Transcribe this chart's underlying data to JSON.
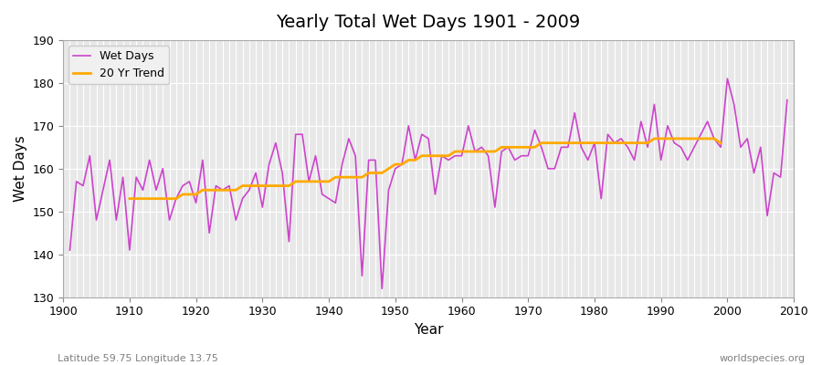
{
  "title": "Yearly Total Wet Days 1901 - 2009",
  "xlabel": "Year",
  "ylabel": "Wet Days",
  "footnote_left": "Latitude 59.75 Longitude 13.75",
  "footnote_right": "worldspecies.org",
  "ylim": [
    130,
    190
  ],
  "yticks": [
    130,
    140,
    150,
    160,
    170,
    180,
    190
  ],
  "line_color": "#cc44cc",
  "trend_color": "#ffaa00",
  "bg_color": "#e8e8e8",
  "years": [
    1901,
    1902,
    1903,
    1904,
    1905,
    1906,
    1907,
    1908,
    1909,
    1910,
    1911,
    1912,
    1913,
    1914,
    1915,
    1916,
    1917,
    1918,
    1919,
    1920,
    1921,
    1922,
    1923,
    1924,
    1925,
    1926,
    1927,
    1928,
    1929,
    1930,
    1931,
    1932,
    1933,
    1934,
    1935,
    1936,
    1937,
    1938,
    1939,
    1940,
    1941,
    1942,
    1943,
    1944,
    1945,
    1946,
    1947,
    1948,
    1949,
    1950,
    1951,
    1952,
    1953,
    1954,
    1955,
    1956,
    1957,
    1958,
    1959,
    1960,
    1961,
    1962,
    1963,
    1964,
    1965,
    1966,
    1967,
    1968,
    1969,
    1970,
    1971,
    1972,
    1973,
    1974,
    1975,
    1976,
    1977,
    1978,
    1979,
    1980,
    1981,
    1982,
    1983,
    1984,
    1985,
    1986,
    1987,
    1988,
    1989,
    1990,
    1991,
    1992,
    1993,
    1994,
    1995,
    1996,
    1997,
    1998,
    1999,
    2000,
    2001,
    2002,
    2003,
    2004,
    2005,
    2006,
    2007,
    2008,
    2009
  ],
  "wet_days": [
    141,
    157,
    156,
    163,
    148,
    155,
    162,
    148,
    158,
    141,
    158,
    155,
    162,
    155,
    160,
    148,
    153,
    156,
    157,
    152,
    162,
    145,
    156,
    155,
    156,
    148,
    153,
    155,
    159,
    151,
    161,
    166,
    159,
    143,
    168,
    168,
    157,
    163,
    154,
    153,
    152,
    161,
    167,
    163,
    135,
    162,
    162,
    132,
    155,
    160,
    161,
    170,
    162,
    168,
    167,
    154,
    163,
    162,
    163,
    163,
    170,
    164,
    165,
    163,
    151,
    164,
    165,
    162,
    163,
    163,
    169,
    165,
    160,
    160,
    165,
    165,
    173,
    165,
    162,
    166,
    153,
    168,
    166,
    167,
    165,
    162,
    171,
    165,
    175,
    162,
    170,
    166,
    165,
    162,
    165,
    168,
    171,
    167,
    165,
    181,
    175,
    165,
    167,
    159,
    165,
    149,
    159,
    158,
    176
  ],
  "trend": [
    null,
    null,
    null,
    null,
    null,
    null,
    null,
    null,
    null,
    153,
    153,
    153,
    153,
    153,
    153,
    153,
    153,
    154,
    154,
    154,
    155,
    155,
    155,
    155,
    155,
    155,
    156,
    156,
    156,
    156,
    156,
    156,
    156,
    156,
    157,
    157,
    157,
    157,
    157,
    157,
    158,
    158,
    158,
    158,
    158,
    159,
    159,
    159,
    160,
    161,
    161,
    162,
    162,
    163,
    163,
    163,
    163,
    163,
    164,
    164,
    164,
    164,
    164,
    164,
    164,
    165,
    165,
    165,
    165,
    165,
    165,
    166,
    166,
    166,
    166,
    166,
    166,
    166,
    166,
    166,
    166,
    166,
    166,
    166,
    166,
    166,
    166,
    166,
    167,
    167,
    167,
    167,
    167,
    167,
    167,
    167,
    167,
    167,
    166
  ]
}
